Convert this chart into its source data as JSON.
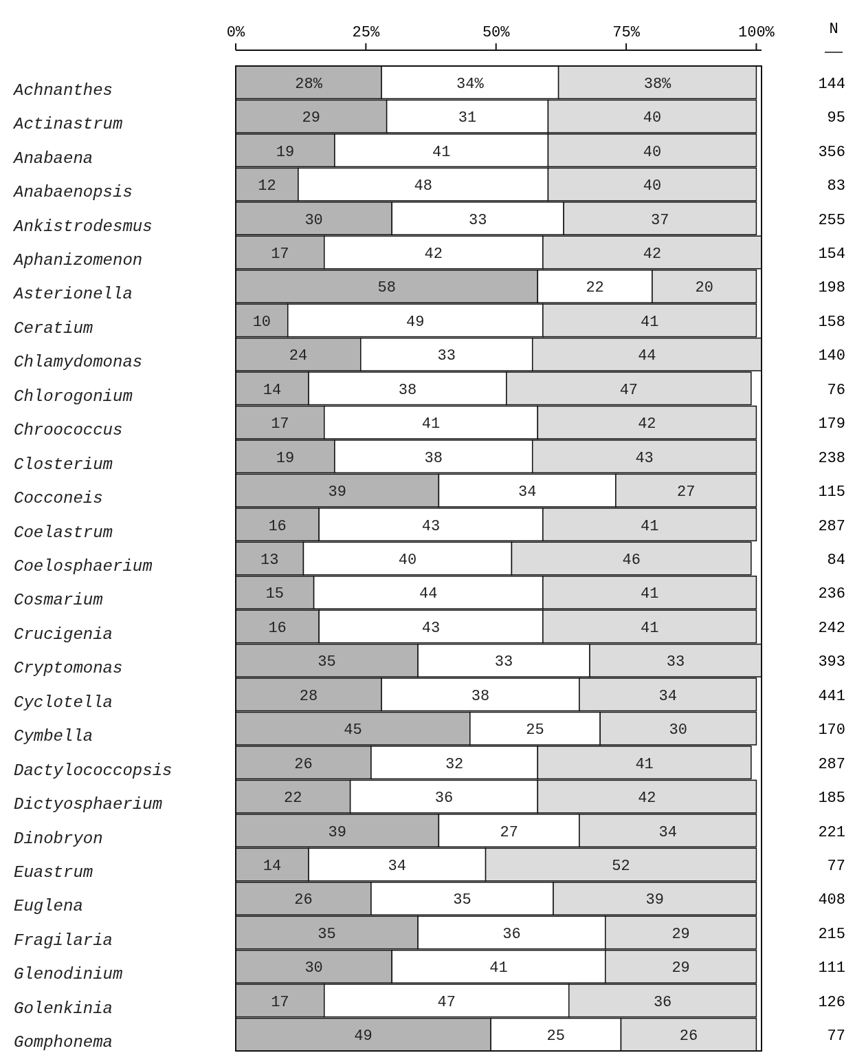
{
  "chart_data": {
    "type": "bar",
    "orientation": "horizontal",
    "stacked": true,
    "categories": [
      "Achnanthes",
      "Actinastrum",
      "Anabaena",
      "Anabaenopsis",
      "Ankistrodesmus",
      "Aphanizomenon",
      "Asterionella",
      "Ceratium",
      "Chlamydomonas",
      "Chlorogonium",
      "Chroococcus",
      "Closterium",
      "Cocconeis",
      "Coelastrum",
      "Coelosphaerium",
      "Cosmarium",
      "Crucigenia",
      "Cryptomonas",
      "Cyclotella",
      "Cymbella",
      "Dactylococcopsis",
      "Dictyosphaerium",
      "Dinobryon",
      "Euastrum",
      "Euglena",
      "Fragilaria",
      "Glenodinium",
      "Golenkinia",
      "Gomphonema"
    ],
    "series": [
      {
        "color": "#b4b4b4",
        "values": [
          28,
          29,
          19,
          12,
          30,
          17,
          58,
          10,
          24,
          14,
          17,
          19,
          39,
          16,
          13,
          15,
          16,
          35,
          28,
          45,
          26,
          22,
          39,
          14,
          26,
          35,
          30,
          17,
          49
        ],
        "value_labels": [
          "28%",
          "29",
          "19",
          "12",
          "30",
          "17",
          "58",
          "10",
          "24",
          "14",
          "17",
          "19",
          "39",
          "16",
          "13",
          "15",
          "16",
          "35",
          "28",
          "45",
          "26",
          "22",
          "39",
          "14",
          "26",
          "35",
          "30",
          "17",
          "49"
        ]
      },
      {
        "color": "#ffffff",
        "values": [
          34,
          31,
          41,
          48,
          33,
          42,
          22,
          49,
          33,
          38,
          41,
          38,
          34,
          43,
          40,
          44,
          43,
          33,
          38,
          25,
          32,
          36,
          27,
          34,
          35,
          36,
          41,
          47,
          25
        ],
        "value_labels": [
          "34%",
          "31",
          "41",
          "48",
          "33",
          "42",
          "22",
          "49",
          "33",
          "38",
          "41",
          "38",
          "34",
          "43",
          "40",
          "44",
          "43",
          "33",
          "38",
          "25",
          "32",
          "36",
          "27",
          "34",
          "35",
          "36",
          "41",
          "47",
          "25"
        ]
      },
      {
        "color": "#dcdcdc",
        "values": [
          38,
          40,
          40,
          40,
          37,
          42,
          20,
          41,
          44,
          47,
          42,
          43,
          27,
          41,
          46,
          41,
          41,
          33,
          34,
          30,
          41,
          42,
          34,
          52,
          39,
          29,
          29,
          36,
          26
        ],
        "value_labels": [
          "38%",
          "40",
          "40",
          "40",
          "37",
          "42",
          "20",
          "41",
          "44",
          "47",
          "42",
          "43",
          "27",
          "41",
          "46",
          "41",
          "41",
          "33",
          "34",
          "30",
          "41",
          "42",
          "34",
          "52",
          "39",
          "29",
          "29",
          "36",
          "26"
        ]
      }
    ],
    "xlim": [
      0,
      101
    ],
    "xticks": [
      {
        "value": 0,
        "label": "0%"
      },
      {
        "value": 25,
        "label": "25%"
      },
      {
        "value": 50,
        "label": "50%"
      },
      {
        "value": 75,
        "label": "75%"
      },
      {
        "value": 100,
        "label": "100%"
      }
    ],
    "annotations": [
      "N",
      "144",
      "95",
      "356",
      "83",
      "255",
      "154",
      "198",
      "158",
      "140",
      "76",
      "179",
      "238",
      "115",
      "287",
      "84",
      "236",
      "242",
      "393",
      "441",
      "170",
      "287",
      "185",
      "221",
      "77",
      "408",
      "215",
      "111",
      "126",
      "77"
    ]
  }
}
